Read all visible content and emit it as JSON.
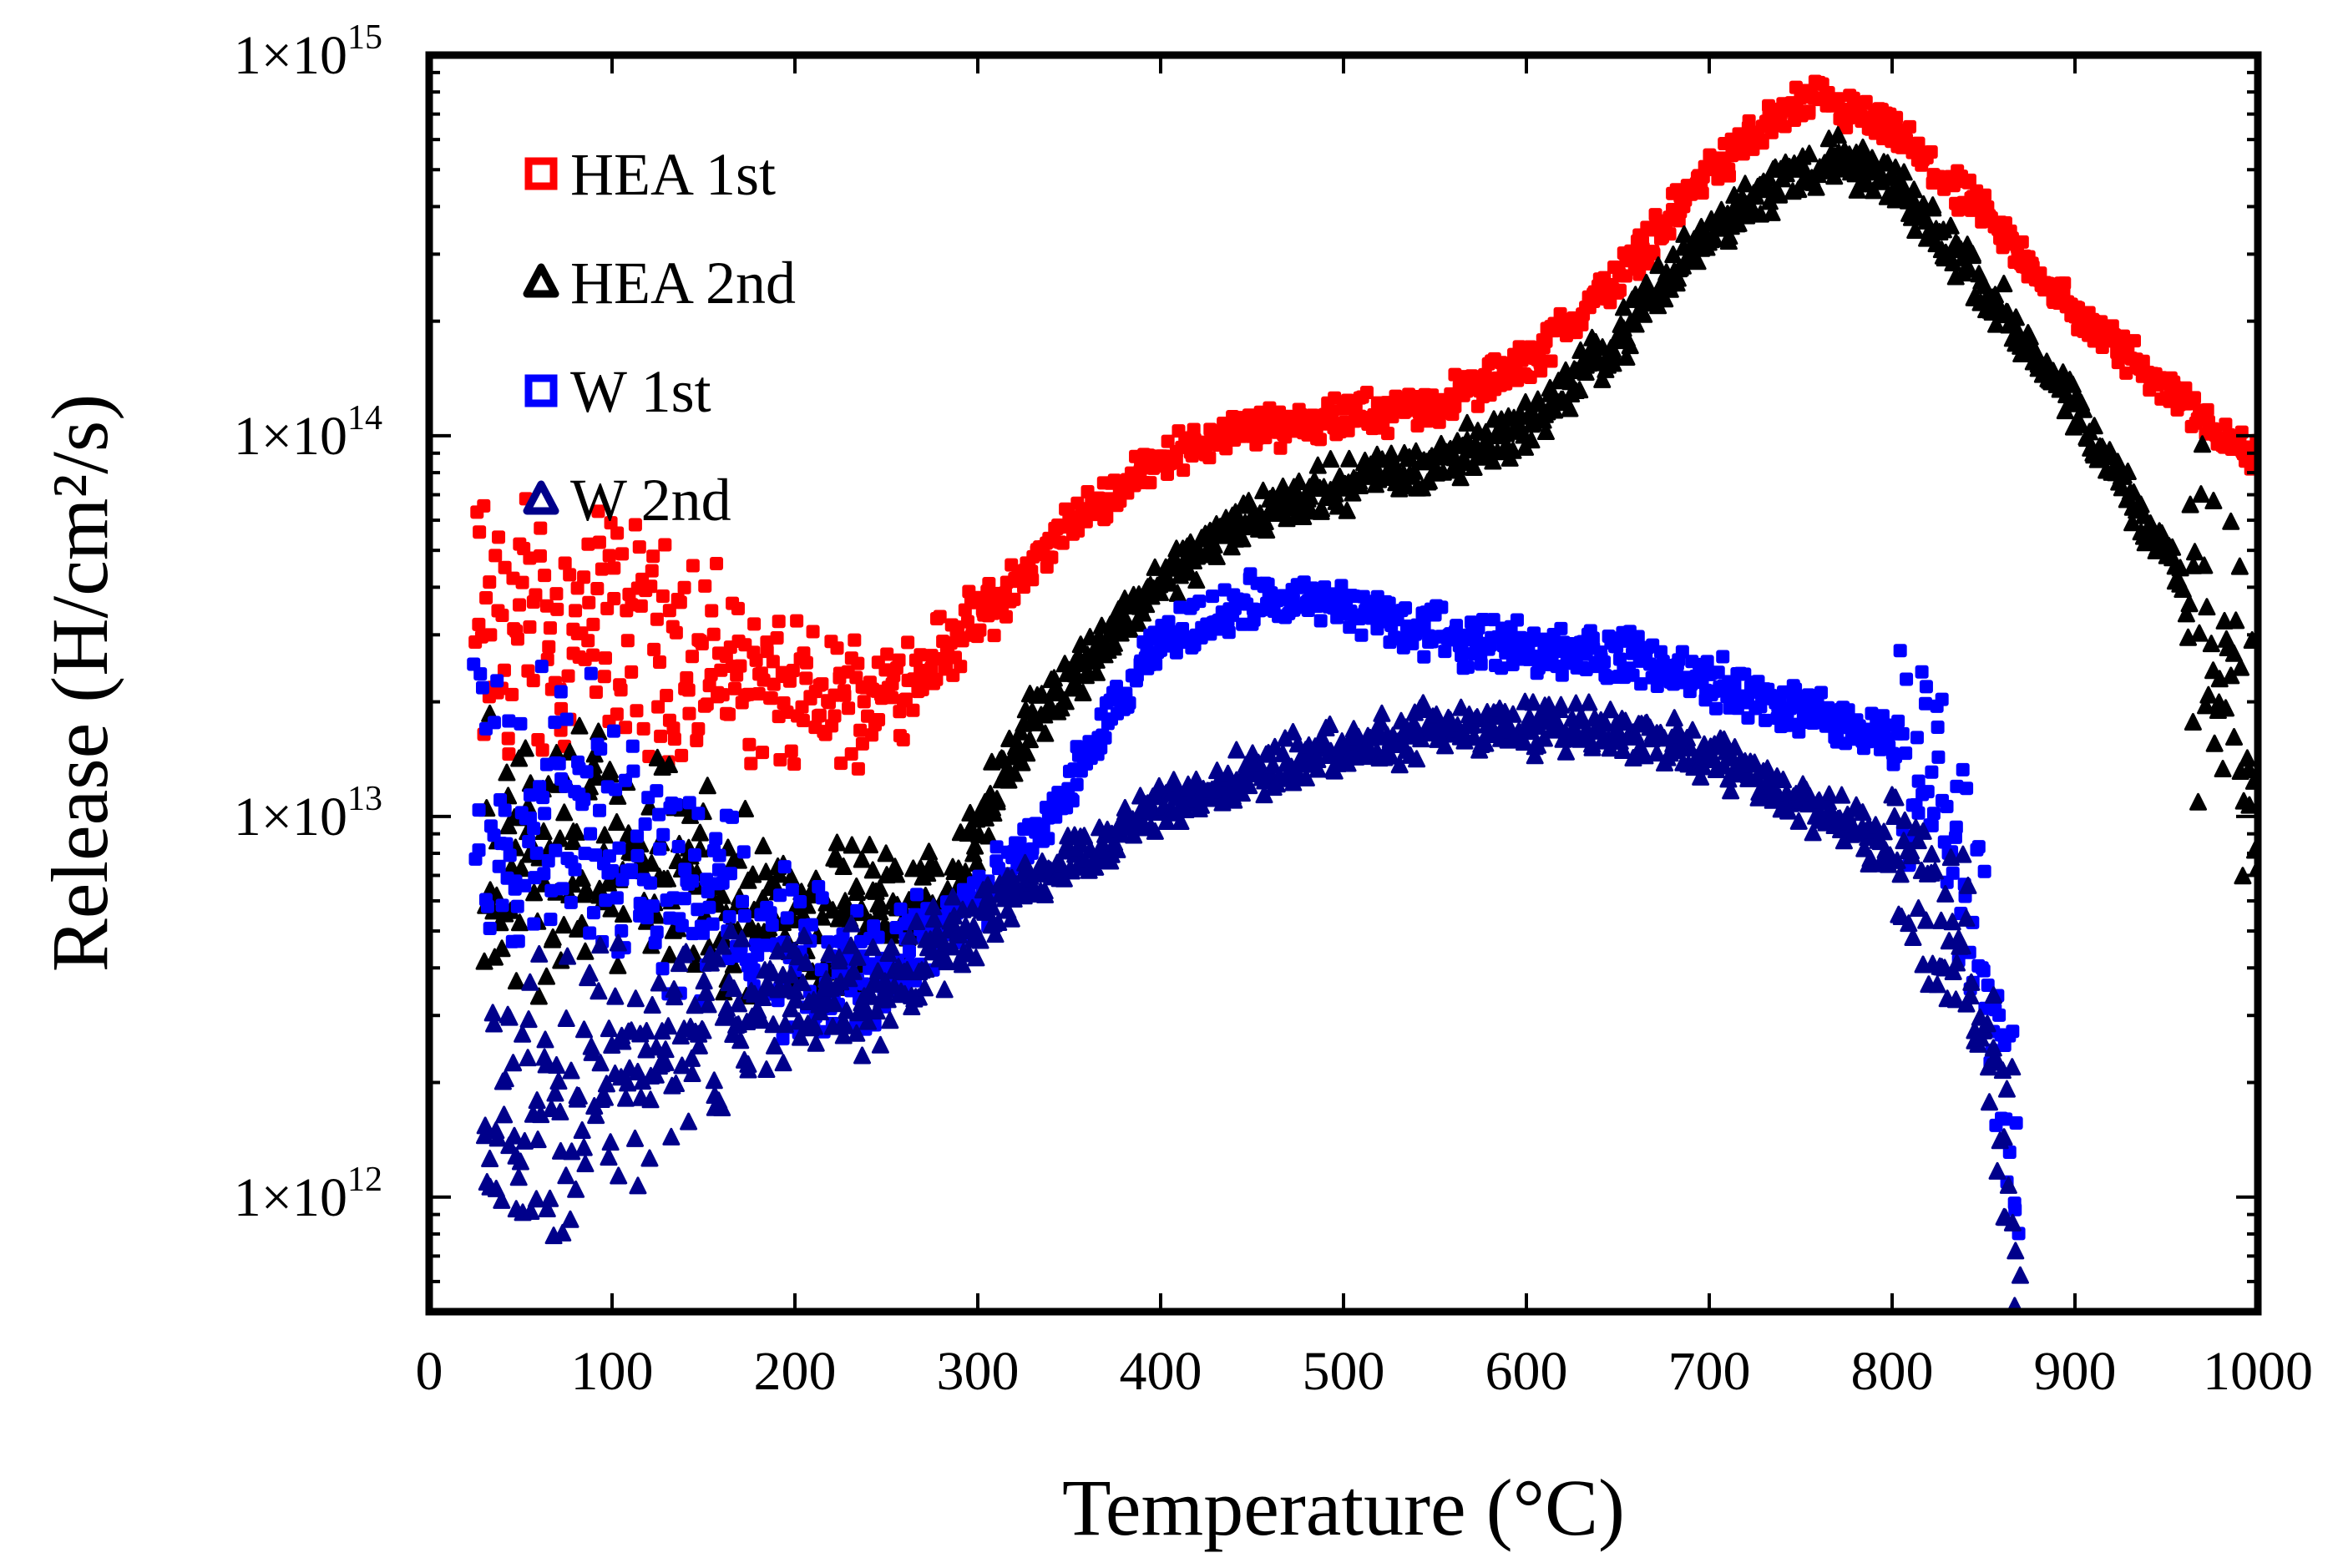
{
  "chart_data": {
    "type": "scatter",
    "xlabel": "Temperature (°C)",
    "ylabel": "Release (H/cm²/s)",
    "xlim": [
      0,
      1000
    ],
    "ylim": [
      500000000000.0,
      1000000000000000.0
    ],
    "yscale": "log",
    "grid": false,
    "legend_position": "top-left",
    "x_ticks": [
      0,
      100,
      200,
      300,
      400,
      500,
      600,
      700,
      800,
      900,
      1000
    ],
    "x_tick_labels": [
      "0",
      "100",
      "200",
      "300",
      "400",
      "500",
      "600",
      "700",
      "800",
      "900",
      "1000"
    ],
    "y_ticks": [
      {
        "value": 1000000000000.0,
        "mantissa": "1×10",
        "exponent": "12"
      },
      {
        "value": 10000000000000.0,
        "mantissa": "1×10",
        "exponent": "13"
      },
      {
        "value": 100000000000000.0,
        "mantissa": "1×10",
        "exponent": "14"
      },
      {
        "value": 1000000000000000.0,
        "mantissa": "1×10",
        "exponent": "15"
      }
    ],
    "series": [
      {
        "name": "HEA 1st",
        "marker": "square",
        "color": "#ff0000",
        "spread": 0.04,
        "profile": [
          [
            25,
            30000000000000.0
          ],
          [
            100,
            32000000000000.0
          ],
          [
            150,
            26000000000000.0
          ],
          [
            200,
            20000000000000.0
          ],
          [
            250,
            21000000000000.0
          ],
          [
            300,
            32000000000000.0
          ],
          [
            350,
            58000000000000.0
          ],
          [
            400,
            88000000000000.0
          ],
          [
            450,
            105000000000000.0
          ],
          [
            500,
            112000000000000.0
          ],
          [
            550,
            120000000000000.0
          ],
          [
            600,
            155000000000000.0
          ],
          [
            650,
            260000000000000.0
          ],
          [
            700,
            500000000000000.0
          ],
          [
            750,
            750000000000000.0
          ],
          [
            760,
            760000000000000.0
          ],
          [
            800,
            630000000000000.0
          ],
          [
            850,
            380000000000000.0
          ],
          [
            900,
            210000000000000.0
          ],
          [
            950,
            135000000000000.0
          ],
          [
            1000,
            85000000000000.0
          ]
        ]
      },
      {
        "name": "HEA 2nd",
        "marker": "triangle",
        "color": "#000000",
        "spread": 0.05,
        "profile": [
          [
            30,
            8000000000000.0
          ],
          [
            100,
            8000000000000.0
          ],
          [
            200,
            5500000000000.0
          ],
          [
            280,
            6000000000000.0
          ],
          [
            330,
            18000000000000.0
          ],
          [
            400,
            42000000000000.0
          ],
          [
            450,
            62000000000000.0
          ],
          [
            500,
            75000000000000.0
          ],
          [
            550,
            85000000000000.0
          ],
          [
            600,
            105000000000000.0
          ],
          [
            650,
            180000000000000.0
          ],
          [
            700,
            350000000000000.0
          ],
          [
            750,
            500000000000000.0
          ],
          [
            770,
            530000000000000.0
          ],
          [
            800,
            460000000000000.0
          ],
          [
            850,
            250000000000000.0
          ],
          [
            900,
            115000000000000.0
          ],
          [
            950,
            50000000000000.0
          ],
          [
            990,
            18000000000000.0
          ],
          [
            1000,
            10000000000000.0
          ]
        ]
      },
      {
        "name": "W 1st",
        "marker": "square",
        "color": "#0000ff",
        "spread": 0.05,
        "profile": [
          [
            25,
            12500000000000.0
          ],
          [
            80,
            10500000000000.0
          ],
          [
            150,
            6500000000000.0
          ],
          [
            200,
            4000000000000.0
          ],
          [
            250,
            4000000000000.0
          ],
          [
            320,
            7200000000000.0
          ],
          [
            400,
            29000000000000.0
          ],
          [
            450,
            37000000000000.0
          ],
          [
            500,
            36000000000000.0
          ],
          [
            550,
            30000000000000.0
          ],
          [
            600,
            28000000000000.0
          ],
          [
            650,
            26500000000000.0
          ],
          [
            700,
            23000000000000.0
          ],
          [
            750,
            19000000000000.0
          ],
          [
            800,
            16000000000000.0
          ],
          [
            825,
            13000000000000.0
          ],
          [
            845,
            6000000000000.0
          ],
          [
            860,
            2000000000000.0
          ],
          [
            870,
            1000000000000.0
          ]
        ]
      },
      {
        "name": "W 2nd",
        "marker": "triangle",
        "color": "#00008b",
        "spread": 0.05,
        "profile": [
          [
            30,
            1500000000000.0
          ],
          [
            80,
            1900000000000.0
          ],
          [
            150,
            2800000000000.0
          ],
          [
            200,
            3300000000000.0
          ],
          [
            250,
            3600000000000.0
          ],
          [
            300,
            5500000000000.0
          ],
          [
            400,
            10500000000000.0
          ],
          [
            450,
            13000000000000.0
          ],
          [
            500,
            15000000000000.0
          ],
          [
            550,
            17000000000000.0
          ],
          [
            600,
            17000000000000.0
          ],
          [
            650,
            17000000000000.0
          ],
          [
            700,
            14500000000000.0
          ],
          [
            750,
            11000000000000.0
          ],
          [
            800,
            8000000000000.0
          ],
          [
            830,
            5000000000000.0
          ],
          [
            850,
            2500000000000.0
          ],
          [
            870,
            900000000000.0
          ]
        ]
      }
    ]
  }
}
